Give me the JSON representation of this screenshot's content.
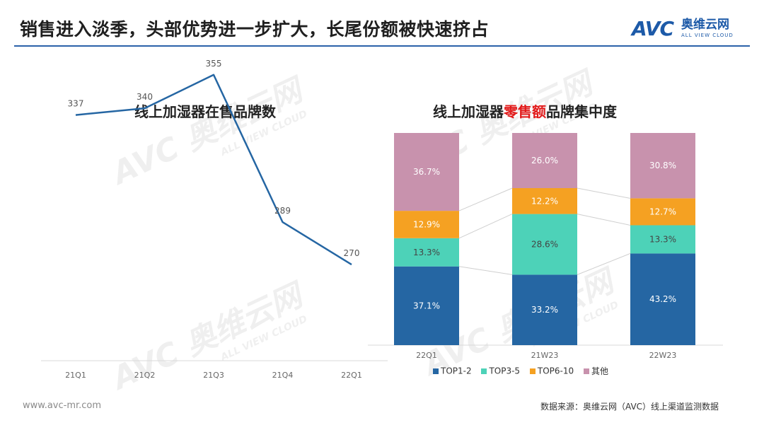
{
  "header": {
    "title": "销售进入淡季，头部优势进一步扩大，长尾份额被快速挤占",
    "logo_avc": "AVC",
    "logo_cn": "奥维云网",
    "logo_en": "ALL VIEW CLOUD"
  },
  "colors": {
    "line": "#2566a3",
    "top1_2": "#2566a3",
    "top3_5": "#4dd2b8",
    "top6_10": "#f5a122",
    "others": "#c892ad",
    "title_rule": "#2b62a9",
    "highlight": "#e21a1a"
  },
  "watermark": {
    "avc": "AVC",
    "cn": "奥维云网",
    "en": "ALL VIEW CLOUD"
  },
  "line_chart": {
    "title": "线上加湿器在售品牌数",
    "chart_data": {
      "type": "line",
      "title": "线上加湿器在售品牌数",
      "categories": [
        "21Q1",
        "21Q2",
        "21Q3",
        "21Q4",
        "22Q1"
      ],
      "values": [
        337,
        340,
        355,
        289,
        270
      ],
      "value_labels": [
        "337",
        "340",
        "355",
        "289",
        "270"
      ],
      "ylim": [
        200,
        360
      ],
      "grid": false
    }
  },
  "bar_chart": {
    "title_prefix": "线上加湿器",
    "title_highlight": "零售额",
    "title_suffix": "品牌集中度",
    "chart_data": {
      "type": "bar",
      "stacked": true,
      "percent": true,
      "categories": [
        "22Q1",
        "21W23",
        "22W23"
      ],
      "series": [
        {
          "name": "TOP1-2",
          "values": [
            37.1,
            33.2,
            43.2
          ],
          "labels": [
            "37.1%",
            "33.2%",
            "43.2%"
          ]
        },
        {
          "name": "TOP3-5",
          "values": [
            13.3,
            28.6,
            13.3
          ],
          "labels": [
            "13.3%",
            "28.6%",
            "13.3%"
          ]
        },
        {
          "name": "TOP6-10",
          "values": [
            12.9,
            12.2,
            12.7
          ],
          "labels": [
            "12.9%",
            "12.2%",
            "12.7%"
          ]
        },
        {
          "name": "其他",
          "values": [
            36.7,
            26.0,
            30.8
          ],
          "labels": [
            "36.7%",
            "26.0%",
            "30.8%"
          ]
        }
      ],
      "legend_position": "bottom"
    }
  },
  "footer": {
    "url": "www.avc-mr.com",
    "source": "数据来源：奥维云网（AVC）线上渠道监测数据"
  }
}
